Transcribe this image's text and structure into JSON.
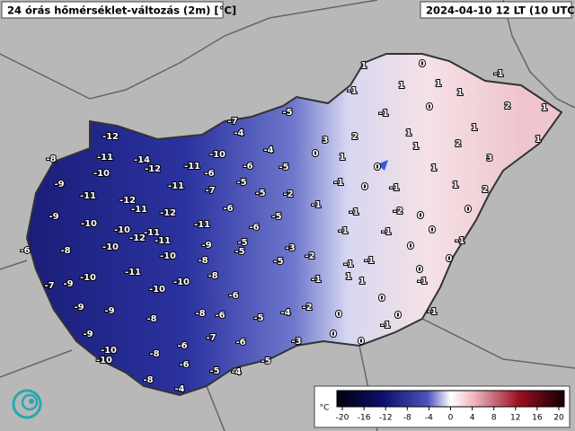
{
  "header": {
    "title": "24 órás hőmérséklet-változás (2m) [°C]",
    "time": "2024-04-10 12 LT (10 UTC)"
  },
  "stations": [
    1,
    0,
    -1,
    1,
    1,
    -1,
    1,
    -5,
    -1,
    0,
    2,
    1,
    -7,
    -4,
    3,
    2,
    1,
    1,
    -12,
    -4,
    0,
    1,
    1,
    2,
    1,
    -8,
    -11,
    -14,
    -10,
    -12,
    -11,
    -6,
    -6,
    -5,
    0,
    1,
    3,
    -9,
    -10,
    -5,
    -11,
    -7,
    -5,
    -2,
    -1,
    0,
    -1,
    1,
    2,
    -11,
    -12,
    -11,
    -12,
    -6,
    -1,
    -1,
    -2,
    0,
    0,
    -9,
    -10,
    -5,
    -6,
    -11,
    -10,
    -11,
    -11,
    -12,
    -10,
    -10,
    -9,
    -5,
    -3,
    -1,
    -1,
    0,
    0,
    -1,
    -6,
    -8,
    -5,
    -2,
    -8,
    -5,
    -1,
    -1,
    0,
    -11,
    -10,
    -8,
    -1,
    0,
    -1,
    1,
    1,
    -7,
    -9,
    -10,
    -10,
    -6,
    0,
    -9,
    -9,
    -2,
    -4,
    -8,
    -6,
    -5,
    0,
    0,
    -1,
    -8,
    -1,
    -9,
    -7,
    -6,
    -3,
    0,
    0,
    -6,
    -10,
    -8,
    -5,
    -10,
    -6,
    -5,
    -4,
    -8,
    -4
  ],
  "colorbar": {
    "unit": "°C",
    "range": [
      -21,
      21
    ],
    "ticks": [
      -20,
      -16,
      -12,
      -8,
      -4,
      0,
      4,
      8,
      12,
      16,
      20
    ]
  }
}
